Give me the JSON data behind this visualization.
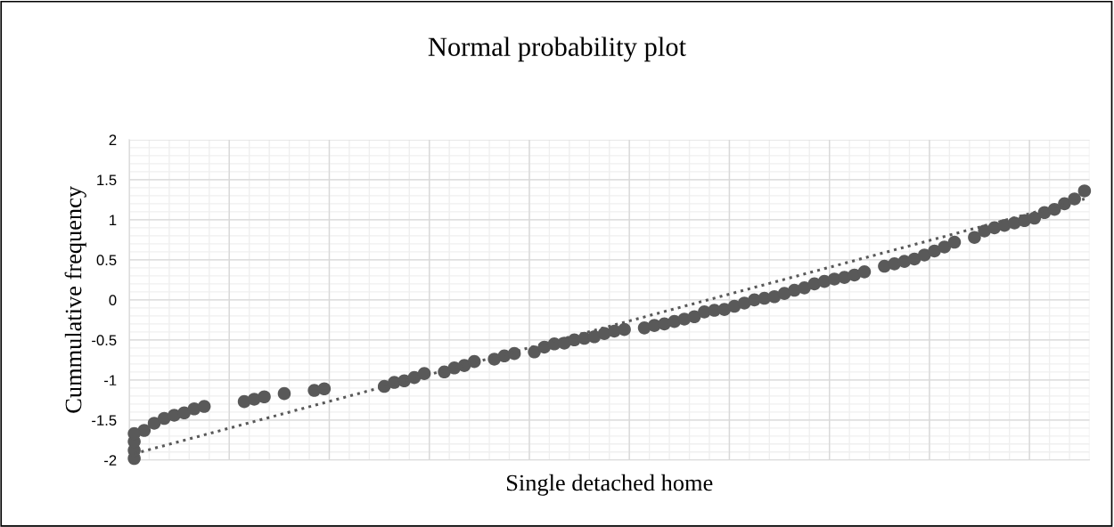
{
  "chart_data": {
    "type": "scatter",
    "title": "Normal probability plot",
    "xlabel": "Single detached home",
    "ylabel": "Cummulative frequency",
    "categories": [
      null,
      null,
      null,
      null,
      null,
      null,
      null,
      null,
      null,
      null,
      null,
      null,
      null,
      null,
      null,
      null,
      null,
      null,
      null,
      null,
      null,
      null,
      null,
      null,
      null,
      null,
      null,
      null,
      null,
      null,
      null,
      null,
      null,
      null,
      null,
      null,
      null,
      null,
      null,
      null,
      null,
      null,
      null,
      null,
      null,
      null,
      null,
      null,
      null,
      null,
      null,
      null,
      null,
      null,
      null,
      null,
      null,
      null,
      null,
      null,
      null,
      null,
      null,
      null,
      null,
      null,
      null,
      null,
      null,
      null,
      null,
      null,
      null,
      null,
      null,
      null,
      null,
      null,
      null,
      null,
      null,
      null,
      null,
      null,
      null,
      null,
      null,
      null,
      null,
      null,
      null,
      null,
      null,
      null,
      null,
      null
    ],
    "series": [
      {
        "color": "#595959",
        "values": [
          -1.98,
          -1.63,
          -1.54,
          -1.48,
          -1.44,
          -1.41,
          -1.36,
          -1.33,
          null,
          null,
          null,
          -1.27,
          -1.24,
          -1.21,
          null,
          -1.17,
          null,
          null,
          -1.13,
          -1.11,
          null,
          null,
          null,
          null,
          null,
          -1.08,
          -1.03,
          -1.01,
          -0.97,
          -0.92,
          null,
          -0.9,
          -0.85,
          -0.82,
          -0.77,
          null,
          -0.74,
          -0.7,
          -0.67,
          null,
          -0.65,
          -0.59,
          -0.55,
          -0.54,
          -0.5,
          -0.48,
          -0.46,
          -0.42,
          -0.39,
          -0.37,
          null,
          -0.35,
          -0.32,
          -0.3,
          -0.27,
          -0.24,
          -0.21,
          -0.15,
          -0.13,
          -0.12,
          -0.08,
          -0.04,
          0.0,
          0.02,
          0.04,
          0.08,
          0.12,
          0.15,
          0.2,
          0.23,
          0.26,
          0.28,
          0.31,
          0.35,
          null,
          0.42,
          0.45,
          0.48,
          0.51,
          0.56,
          0.61,
          0.66,
          0.72,
          null,
          0.78,
          0.86,
          0.9,
          0.93,
          0.96,
          0.99,
          1.02,
          1.09,
          1.13,
          1.2,
          1.26,
          1.36
        ]
      },
      {
        "color": "#595959",
        "values": [
          -1.88,
          null,
          null,
          null,
          null,
          null,
          null,
          null,
          null,
          null,
          null,
          null,
          null,
          null,
          null,
          null,
          null,
          null,
          null,
          null,
          null,
          null,
          null,
          null,
          null,
          null,
          null,
          null,
          null,
          null,
          null,
          null,
          null,
          null,
          null,
          null,
          null,
          null,
          null,
          null,
          null,
          null,
          null,
          null,
          null,
          null,
          null,
          null,
          null,
          null,
          null,
          null,
          null,
          null,
          null,
          null,
          null,
          null,
          null,
          null,
          null,
          null,
          null,
          null,
          null,
          null,
          null,
          null,
          null,
          null,
          null,
          null,
          null,
          null,
          null,
          null,
          null,
          null,
          null,
          null,
          null,
          null,
          null,
          null,
          null,
          null,
          null,
          null,
          null,
          null,
          null,
          null,
          null,
          null,
          null,
          null
        ]
      },
      {
        "color": "#595959",
        "values": [
          -1.77,
          null,
          null,
          null,
          null,
          null,
          null,
          null,
          null,
          null,
          null,
          null,
          null,
          null,
          null,
          null,
          null,
          null,
          null,
          null,
          null,
          null,
          null,
          null,
          null,
          null,
          null,
          null,
          null,
          null,
          null,
          null,
          null,
          null,
          null,
          null,
          null,
          null,
          null,
          null,
          null,
          null,
          null,
          null,
          null,
          null,
          null,
          null,
          null,
          null,
          null,
          null,
          null,
          null,
          null,
          null,
          null,
          null,
          null,
          null,
          null,
          null,
          null,
          null,
          null,
          null,
          null,
          null,
          null,
          null,
          null,
          null,
          null,
          null,
          null,
          null,
          null,
          null,
          null,
          null,
          null,
          null,
          null,
          null,
          null,
          null,
          null,
          null,
          null,
          null,
          null,
          null,
          null,
          null,
          null,
          null
        ]
      },
      {
        "color": "#595959",
        "values": [
          -1.67,
          null,
          null,
          null,
          null,
          null,
          null,
          null,
          null,
          null,
          null,
          null,
          null,
          null,
          null,
          null,
          null,
          null,
          null,
          null,
          null,
          null,
          null,
          null,
          null,
          null,
          null,
          null,
          null,
          null,
          null,
          null,
          null,
          null,
          null,
          null,
          null,
          null,
          null,
          null,
          null,
          null,
          null,
          null,
          null,
          null,
          null,
          null,
          null,
          null,
          null,
          null,
          null,
          null,
          null,
          null,
          null,
          null,
          null,
          null,
          null,
          null,
          null,
          null,
          null,
          null,
          null,
          null,
          null,
          null,
          null,
          null,
          null,
          null,
          null,
          null,
          null,
          null,
          null,
          null,
          null,
          null,
          null,
          null,
          null,
          null,
          null,
          null,
          null,
          null,
          null,
          null,
          null,
          null,
          null,
          null
        ]
      },
      {
        "type": "line",
        "color": "#595959",
        "line_style": "dotted",
        "marker": "none",
        "values": [
          -1.92,
          null,
          null,
          null,
          null,
          null,
          null,
          null,
          null,
          null,
          null,
          null,
          null,
          null,
          null,
          null,
          null,
          null,
          null,
          null,
          null,
          null,
          null,
          null,
          null,
          null,
          null,
          null,
          null,
          null,
          null,
          null,
          null,
          null,
          null,
          null,
          null,
          null,
          null,
          null,
          null,
          null,
          null,
          null,
          null,
          null,
          null,
          null,
          null,
          null,
          null,
          null,
          null,
          null,
          null,
          null,
          null,
          null,
          null,
          null,
          null,
          null,
          null,
          null,
          null,
          null,
          null,
          null,
          null,
          null,
          null,
          null,
          null,
          null,
          null,
          null,
          null,
          null,
          null,
          null,
          null,
          null,
          null,
          null,
          null,
          null,
          null,
          null,
          null,
          null,
          null,
          null,
          null,
          null,
          null,
          1.26
        ]
      }
    ],
    "ylim": [
      -2,
      2
    ],
    "yticks": [
      -2,
      -1.5,
      -1,
      -0.5,
      0,
      0.5,
      1,
      1.5,
      2
    ],
    "grid": true,
    "marker": "circle",
    "legend": false
  }
}
